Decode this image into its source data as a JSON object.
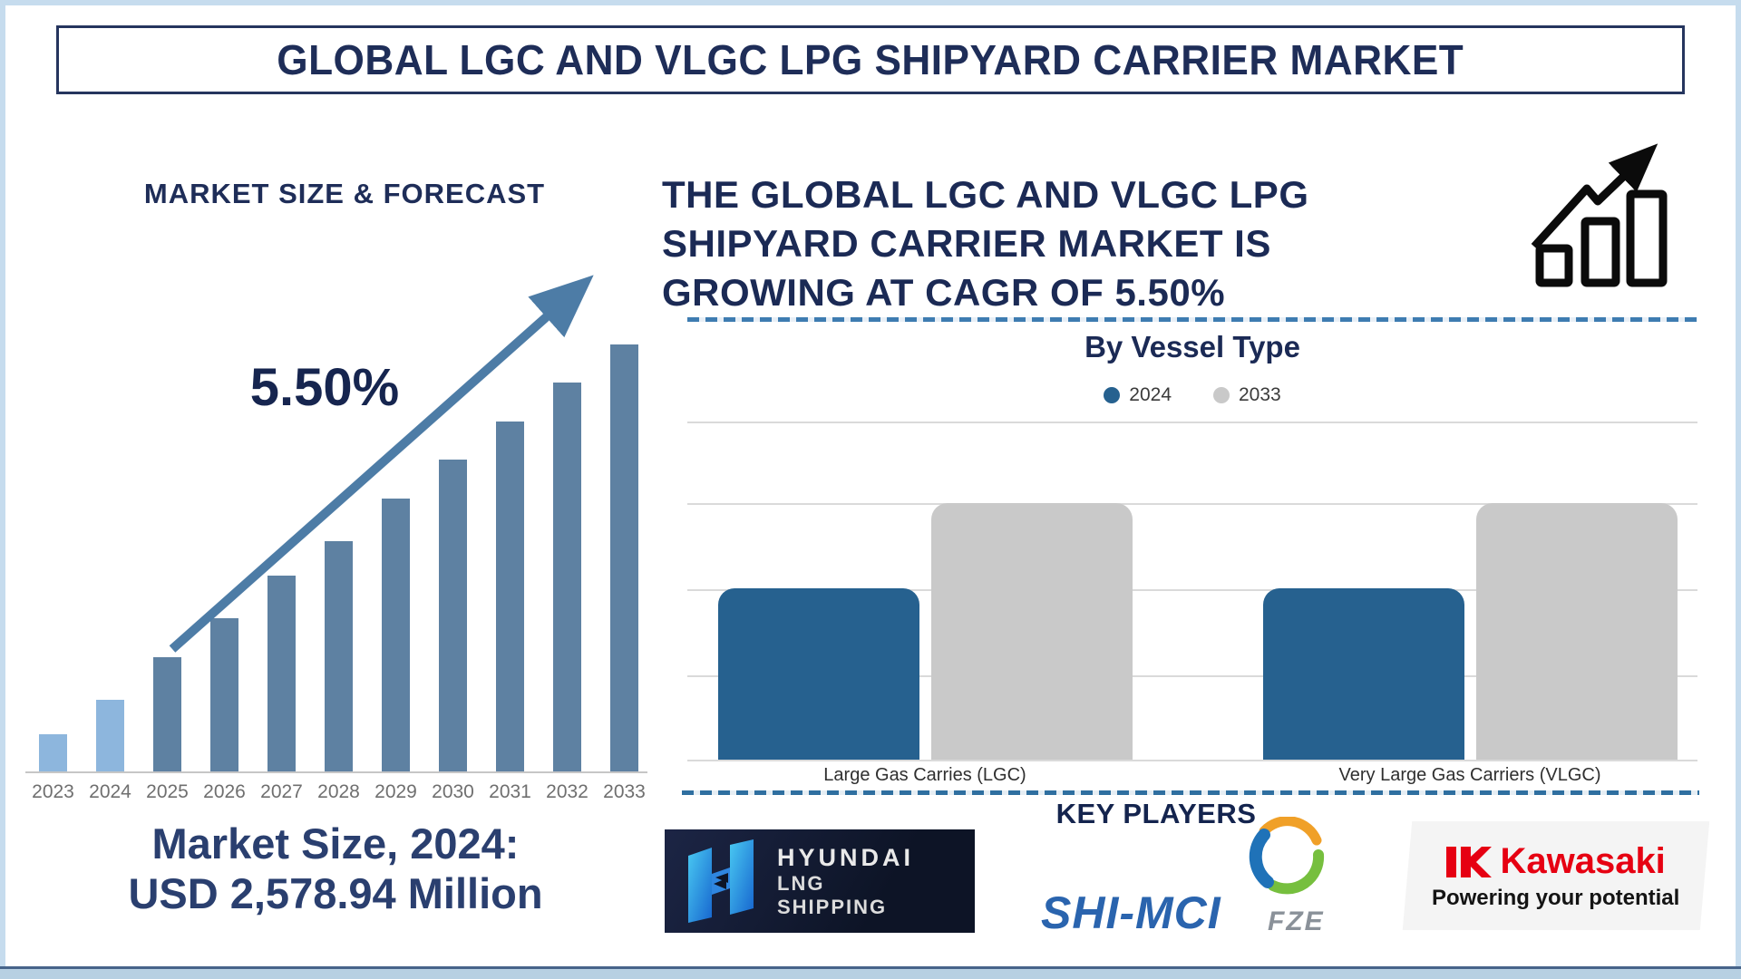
{
  "title_bar": {
    "title": "GLOBAL LGC AND VLGC LPG SHIPYARD CARRIER MARKET"
  },
  "left_panel": {
    "heading": "MARKET SIZE & FORECAST",
    "cagr_annotation": "5.50%",
    "market_size_line1": "Market Size, 2024:",
    "market_size_line2": "USD 2,578.94 Million"
  },
  "right_panel": {
    "headline_lines": [
      "THE GLOBAL LGC AND VLGC LPG",
      "SHIPYARD CARRIER MARKET IS",
      "GROWING AT CAGR OF 5.50%"
    ],
    "vessel_section_title": "By Vessel Type",
    "key_players_title": "KEY PLAYERS"
  },
  "key_players": {
    "hyundai": {
      "name": "Hyundai LNG Shipping",
      "lines": [
        "HYUNDAI",
        "LNG",
        "SHIPPING"
      ]
    },
    "shi_mci": {
      "name": "SHI-MCI FZE",
      "wordmark": "SHI-MCI",
      "suffix": "FZE"
    },
    "kawasaki": {
      "name": "Kawasaki",
      "wordmark": "Kawasaki",
      "tagline": "Powering your potential"
    }
  },
  "colors": {
    "navy_text": "#1e2d58",
    "frame_blue": "#c6dcee",
    "dash_blue": "#3e7cb1",
    "arrow_blue": "#4d7ca6",
    "forecast_bar_light": "#8db6dd",
    "forecast_bar_steel": "#5e81a2",
    "bar_2024_blue": "#26618f",
    "bar_2033_gray": "#c9c9c9",
    "kawasaki_red": "#e60012",
    "shimci_blue": "#2a64ae"
  },
  "chart_data": [
    {
      "type": "bar",
      "title": "MARKET SIZE & FORECAST",
      "categories": [
        "2023",
        "2024",
        "2025",
        "2026",
        "2027",
        "2028",
        "2029",
        "2030",
        "2031",
        "2032",
        "2033"
      ],
      "values": [
        9,
        17,
        27,
        36,
        46,
        54,
        64,
        73,
        82,
        91,
        100
      ],
      "note": "bars unlabeled in source; values are relative heights with 2033 = 100",
      "annotation": "5.50%",
      "highlight_categories": [
        "2023",
        "2024"
      ],
      "highlight_color": "#8db6dd",
      "default_color": "#5e81a2",
      "xlabel": "",
      "ylabel": "",
      "grid": false,
      "axes": "x-baseline only"
    },
    {
      "type": "bar",
      "title": "By Vessel Type",
      "categories": [
        "Large Gas Carries (LGC)",
        "Very Large Gas Carriers (VLGC)"
      ],
      "series": [
        {
          "name": "2024",
          "color": "#26618f",
          "values": [
            2,
            2
          ]
        },
        {
          "name": "2033",
          "color": "#c9c9c9",
          "values": [
            3,
            3
          ]
        }
      ],
      "ylim": [
        0,
        4
      ],
      "grid": true,
      "legend_position": "top",
      "note": "y-axis unlabeled; values estimated from gridlines"
    }
  ]
}
